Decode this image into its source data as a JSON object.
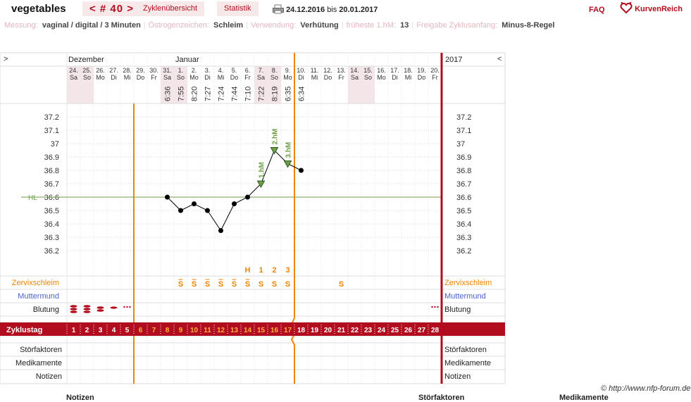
{
  "header": {
    "app_name": "vegetables",
    "cycle_nav": "< # 40 >",
    "overview_label": "Zyklenübersicht",
    "stats_label": "Statistik",
    "date_from": "24.12.2016",
    "date_sep": "bis",
    "date_to": "20.01.2017",
    "faq_label": "FAQ",
    "logo_text": "KurvenReich"
  },
  "info_bar": [
    {
      "label": "Messung:",
      "value": "vaginal / digital / 3 Minuten"
    },
    {
      "label": "Östrogenzeichen:",
      "value": "Schleim"
    },
    {
      "label": "Verwendung:",
      "value": "Verhütung"
    },
    {
      "label": "früheste 1.hM:",
      "value": "13"
    },
    {
      "label": "Freigabe Zyklusanfang:",
      "value": "Minus-8-Regel"
    }
  ],
  "chart_data": {
    "type": "line",
    "months": {
      "left": "Dezember",
      "mid": "Januar",
      "right": "2017"
    },
    "nav": {
      "left": ">",
      "right": "<"
    },
    "days": [
      {
        "d": "24.",
        "w": "Sa",
        "we": true
      },
      {
        "d": "25.",
        "w": "So",
        "we": true
      },
      {
        "d": "26.",
        "w": "Mo"
      },
      {
        "d": "27.",
        "w": "Di"
      },
      {
        "d": "28.",
        "w": "Mi"
      },
      {
        "d": "29.",
        "w": "Do"
      },
      {
        "d": "30.",
        "w": "Fr"
      },
      {
        "d": "31.",
        "w": "Sa",
        "we": true
      },
      {
        "d": "1.",
        "w": "So",
        "we": true
      },
      {
        "d": "2.",
        "w": "Mo"
      },
      {
        "d": "3.",
        "w": "Di"
      },
      {
        "d": "4.",
        "w": "Mi"
      },
      {
        "d": "5.",
        "w": "Do"
      },
      {
        "d": "6.",
        "w": "Fr"
      },
      {
        "d": "7.",
        "w": "Sa",
        "we": true
      },
      {
        "d": "8.",
        "w": "So",
        "we": true
      },
      {
        "d": "9.",
        "w": "Mo"
      },
      {
        "d": "10.",
        "w": "Di"
      },
      {
        "d": "11.",
        "w": "Mi"
      },
      {
        "d": "12.",
        "w": "Do"
      },
      {
        "d": "13.",
        "w": "Fr"
      },
      {
        "d": "14.",
        "w": "Sa",
        "we": true
      },
      {
        "d": "15.",
        "w": "So",
        "we": true
      },
      {
        "d": "16.",
        "w": "Mo"
      },
      {
        "d": "17.",
        "w": "Di"
      },
      {
        "d": "18.",
        "w": "Mi"
      },
      {
        "d": "19.",
        "w": "Do"
      },
      {
        "d": "20.",
        "w": "Fr"
      }
    ],
    "times": {
      "8": "6:36",
      "9": "7:55",
      "10": "8:20",
      "11": "7:27",
      "12": "7:24",
      "13": "7:44",
      "14": "7:10",
      "15": "7:22",
      "16": "8:19",
      "17": "6:35",
      "18": "6:34"
    },
    "temps": {
      "8": 36.6,
      "9": 36.5,
      "10": 36.55,
      "11": 36.5,
      "12": 36.35,
      "13": 36.55,
      "14": 36.6,
      "15": 36.7,
      "16": 36.95,
      "17": 36.85,
      "18": 36.8
    },
    "y_ticks": [
      "37.2",
      "37.1",
      "37",
      "36.9",
      "36.8",
      "36.7",
      "36.6",
      "36.5",
      "36.4",
      "36.3",
      "36.2"
    ],
    "ylim": [
      36.1,
      37.3
    ],
    "hl_value": 36.6,
    "hl_label": "HL",
    "marks": [
      {
        "day": 15,
        "label": "1.hM"
      },
      {
        "day": 16,
        "label": "2.hM"
      },
      {
        "day": 17,
        "label": "3.hM"
      }
    ],
    "high_labels": {
      "14": "H",
      "15": "1",
      "16": "2",
      "17": "3"
    },
    "mucus": {
      "9": "S+",
      "10": "S+",
      "11": "S+",
      "12": "S+",
      "13": "S+",
      "14": "S+",
      "15": "S",
      "16": "S",
      "17": "S",
      "21": "S"
    },
    "bleeding": {
      "1": "heavy",
      "2": "heavy",
      "3": "medium",
      "4": "light",
      "5": "spotting",
      "28": "spotting"
    },
    "infertile_until": 5,
    "fertile_from": 6,
    "fertile_to": 17,
    "row_labels": {
      "mucus": "Zervixschleim",
      "cervix": "Muttermund",
      "bleeding": "Blutung",
      "cycle": "Zyklustag",
      "disturbance": "Störfaktoren",
      "medication": "Medikamente",
      "notes": "Notizen"
    },
    "cycle_days": [
      "1",
      "2",
      "3",
      "4",
      "5",
      "6",
      "7",
      "8",
      "9",
      "10",
      "11",
      "12",
      "13",
      "14",
      "15",
      "16",
      "17",
      "18",
      "19",
      "20",
      "21",
      "22",
      "23",
      "24",
      "25",
      "26",
      "27",
      "28"
    ]
  },
  "footer": {
    "copyright": "© http://www.nfp-forum.de",
    "col_notes": "Notizen",
    "col_disturbance": "Störfaktoren",
    "col_medication": "Medikamente"
  },
  "colors": {
    "accent": "#b20d1e",
    "orange": "#ee8400",
    "green": "#6d9f46",
    "blue": "#4a64c8",
    "weekend": "#f4e6e8"
  }
}
